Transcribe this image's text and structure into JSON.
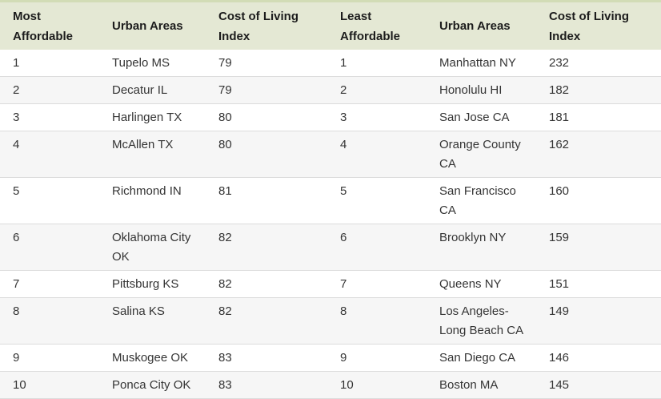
{
  "colors": {
    "header_bg": "#e4e8d4",
    "header_top_border": "#d2dcb6",
    "alt_row_bg": "#f6f6f6",
    "row_divider": "#dcdcdc",
    "header_text": "#1c1c1c",
    "body_text": "#343434"
  },
  "table": {
    "headers": [
      "Most Affordable",
      "Urban Areas",
      "Cost of Living Index",
      "Least Affordable",
      "Urban Areas",
      "Cost of Living Index"
    ],
    "rows": [
      [
        "1",
        "Tupelo MS",
        "79",
        "1",
        "Manhattan NY",
        "232"
      ],
      [
        "2",
        "Decatur IL",
        "79",
        "2",
        "Honolulu HI",
        "182"
      ],
      [
        "3",
        "Harlingen TX",
        "80",
        "3",
        "San Jose CA",
        "181"
      ],
      [
        "4",
        "McAllen TX",
        "80",
        "4",
        "Orange County CA",
        "162"
      ],
      [
        "5",
        "Richmond IN",
        "81",
        "5",
        "San Francisco CA",
        "160"
      ],
      [
        "6",
        "Oklahoma City OK",
        "82",
        "6",
        "Brooklyn NY",
        "159"
      ],
      [
        "7",
        "Pittsburg KS",
        "82",
        "7",
        "Queens NY",
        "151"
      ],
      [
        "8",
        "Salina KS",
        "82",
        "8",
        "Los Angeles-Long Beach CA",
        "149"
      ],
      [
        "9",
        "Muskogee OK",
        "83",
        "9",
        "San Diego CA",
        "146"
      ],
      [
        "10",
        "Ponca City OK",
        "83",
        "10",
        "Boston MA",
        "145"
      ]
    ]
  },
  "chart_data": {
    "type": "table",
    "columns": [
      "Most Affordable",
      "Urban Areas",
      "Cost of Living Index",
      "Least Affordable",
      "Urban Areas",
      "Cost of Living Index"
    ],
    "most_affordable": {
      "ranks": [
        1,
        2,
        3,
        4,
        5,
        6,
        7,
        8,
        9,
        10
      ],
      "urban_areas": [
        "Tupelo MS",
        "Decatur IL",
        "Harlingen TX",
        "McAllen TX",
        "Richmond IN",
        "Oklahoma City OK",
        "Pittsburg KS",
        "Salina KS",
        "Muskogee OK",
        "Ponca City OK"
      ],
      "cost_of_living_index": [
        79,
        79,
        80,
        80,
        81,
        82,
        82,
        82,
        83,
        83
      ]
    },
    "least_affordable": {
      "ranks": [
        1,
        2,
        3,
        4,
        5,
        6,
        7,
        8,
        9,
        10
      ],
      "urban_areas": [
        "Manhattan NY",
        "Honolulu HI",
        "San Jose CA",
        "Orange County CA",
        "San Francisco CA",
        "Brooklyn NY",
        "Queens NY",
        "Los Angeles-Long Beach CA",
        "San Diego CA",
        "Boston MA"
      ],
      "cost_of_living_index": [
        232,
        182,
        181,
        162,
        160,
        159,
        151,
        149,
        146,
        145
      ]
    }
  }
}
